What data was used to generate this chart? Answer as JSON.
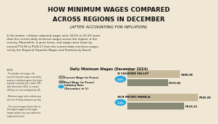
{
  "title_line1": "HOW MINIMUM WAGES COMPARED",
  "title_line2": "ACROSS REGIONS IN DECEMBER",
  "subtitle": "(AFTER ACCOUNTING FOR INFLATION)",
  "body_text": "In December, inflation-adjusted wages were 18.5% to 25.3% lower\nthan the current daily minimum wages across the regions in the\ncountry. Meanwhile, in peso terms, real wages were lower by\naround ₱74.95 to ₱128.17 from the current daily minimum wages\nset by the Regional Tripartite Wages and Productivity Board.",
  "chart_title": "Daily Minimum Wages (December 2024)",
  "regions": [
    {
      "name": "B CAGAYAN VALLEY",
      "inflation_rate": "6.6%",
      "current_wage": 480.0,
      "real_wage": 370.08
    },
    {
      "name": "NCR METRO MANILA",
      "inflation_rate": "3.3%",
      "current_wage": 645.0,
      "real_wage": 518.22
    }
  ],
  "bar_current_color": "#c8b99a",
  "bar_real_color": "#8a8a78",
  "inflation_circle_color": "#29aae1",
  "notes_text": "NOTES:\n- To calculate real wages, the\ncurrent (nominal) wage received by\nworkers is deflated against the latest\nregional consumer price index (CPI)\ndata (December 2024, at revised\n2018 prices) and multiplied by 100.\n\n- Minimum wage refers to basic pay\nand cost of living allowance per day.\n\n- The current wages shown refer to\nthe highest wages in the region\n(wages and/or vary even within the\nregion and sector).",
  "legend_items": [
    {
      "label": "Current Wage (in Pesos)",
      "color": "#c8b99a"
    },
    {
      "label": "Real Wage (in Pesos)",
      "color": "#8a8a78"
    }
  ],
  "bg_color": "#f0e8d5",
  "title_color": "#111111",
  "max_bar_value": 700
}
